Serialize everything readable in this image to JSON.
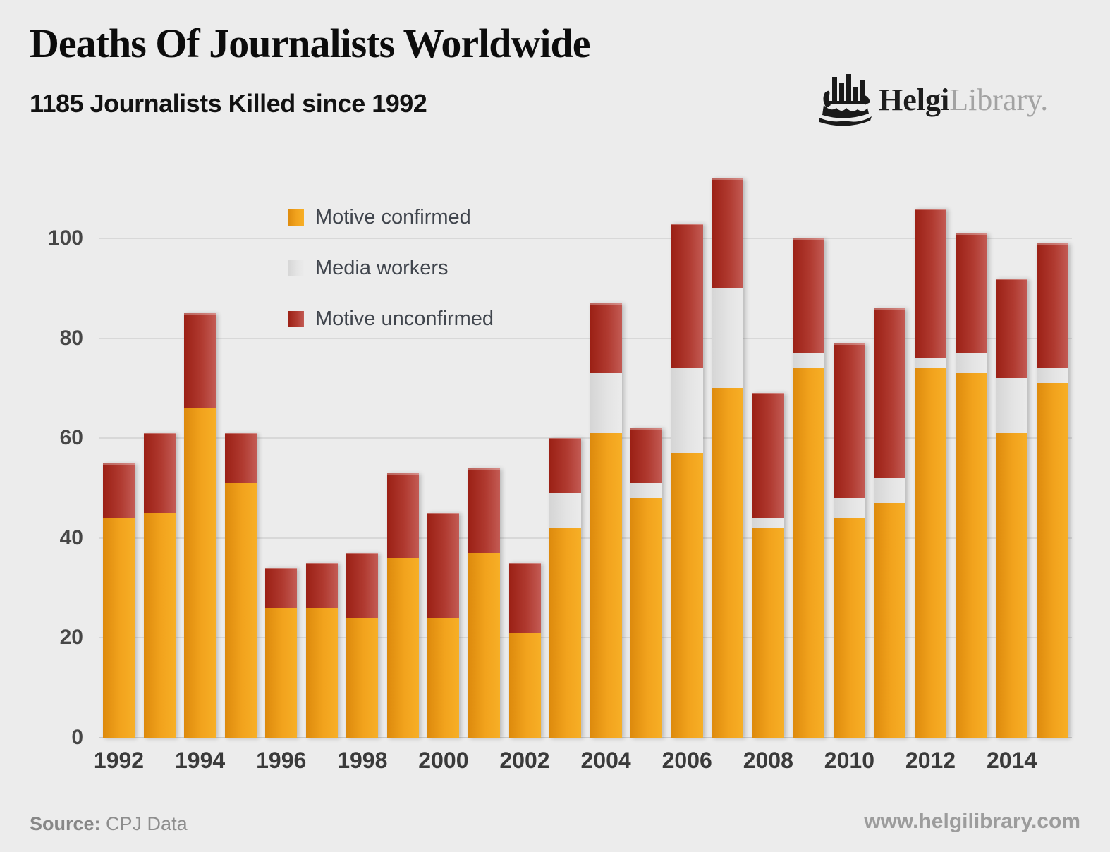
{
  "header": {
    "title": "Deaths Of Journalists Worldwide",
    "subtitle": "1185 Journalists Killed since 1992"
  },
  "logo": {
    "brand": "Helgi",
    "brand_suffix": "Library.",
    "icon": "viking-ship-bar-chart-icon"
  },
  "chart_data": {
    "type": "bar",
    "stacked": true,
    "title": "Deaths Of Journalists Worldwide",
    "x": [
      1992,
      1993,
      1994,
      1995,
      1996,
      1997,
      1998,
      1999,
      2000,
      2001,
      2002,
      2003,
      2004,
      2005,
      2006,
      2007,
      2008,
      2009,
      2010,
      2011,
      2012,
      2013,
      2014,
      2015
    ],
    "series": [
      {
        "name": "Motive confirmed",
        "color": "#ef9c16",
        "values": [
          44,
          45,
          66,
          51,
          26,
          26,
          24,
          36,
          24,
          37,
          21,
          42,
          61,
          48,
          57,
          70,
          42,
          74,
          44,
          47,
          74,
          73,
          61,
          71
        ]
      },
      {
        "name": "Media workers",
        "color": "#dedede",
        "values": [
          0,
          0,
          0,
          0,
          0,
          0,
          0,
          0,
          0,
          0,
          0,
          7,
          12,
          3,
          17,
          20,
          2,
          3,
          4,
          5,
          2,
          4,
          11,
          3
        ]
      },
      {
        "name": "Motive unconfirmed",
        "color": "#ae352b",
        "values": [
          11,
          16,
          19,
          10,
          8,
          9,
          13,
          17,
          21,
          17,
          14,
          11,
          14,
          11,
          29,
          22,
          25,
          23,
          31,
          34,
          30,
          24,
          20,
          25
        ]
      }
    ],
    "totals": [
      55,
      61,
      85,
      61,
      34,
      35,
      37,
      53,
      45,
      54,
      35,
      60,
      87,
      62,
      103,
      112,
      69,
      100,
      79,
      86,
      106,
      101,
      92,
      99
    ],
    "yticks": [
      0,
      20,
      40,
      60,
      80,
      100
    ],
    "ylim": [
      0,
      115
    ],
    "xtick_labels": [
      "1992",
      "1994",
      "1996",
      "1998",
      "2000",
      "2002",
      "2004",
      "2006",
      "2008",
      "2010",
      "2012",
      "2014"
    ],
    "grid": true,
    "legend_position": "top-left-inside"
  },
  "footer": {
    "source_label": "Source:",
    "source_value": "CPJ Data",
    "website": "www.helgilibrary.com"
  }
}
